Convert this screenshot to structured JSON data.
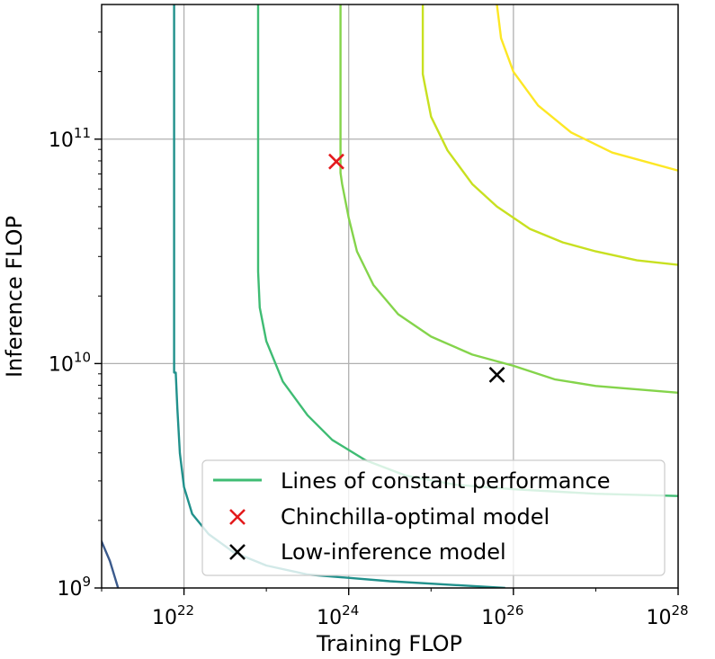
{
  "chart_data": {
    "type": "line",
    "xlabel": "Training FLOP",
    "ylabel": "Inference FLOP",
    "xscale": "log",
    "yscale": "log",
    "xlim_log10": [
      21.0,
      28.0
    ],
    "ylim_log10": [
      9.0,
      11.6
    ],
    "grid": true,
    "x_ticks": [
      {
        "base": "10",
        "exp": "22",
        "log10": 22
      },
      {
        "base": "10",
        "exp": "24",
        "log10": 24
      },
      {
        "base": "10",
        "exp": "26",
        "log10": 26
      },
      {
        "base": "10",
        "exp": "28",
        "log10": 28
      }
    ],
    "y_ticks": [
      {
        "base": "10",
        "exp": "9",
        "log10": 9
      },
      {
        "base": "10",
        "exp": "10",
        "log10": 10
      },
      {
        "base": "10",
        "exp": "11",
        "log10": 11
      }
    ],
    "series": [
      {
        "name": "contour-0",
        "color": "#3b5a8c",
        "points": [
          [
            20.95,
            9.25
          ],
          [
            21.1,
            9.12
          ],
          [
            21.2,
            9.0
          ]
        ]
      },
      {
        "name": "contour-1",
        "color": "#21918c",
        "points": [
          [
            21.88,
            11.6
          ],
          [
            21.88,
            9.96
          ],
          [
            21.9,
            9.96
          ],
          [
            21.92,
            9.8
          ],
          [
            21.95,
            9.6
          ],
          [
            22.0,
            9.45
          ],
          [
            22.1,
            9.33
          ],
          [
            22.3,
            9.24
          ],
          [
            22.6,
            9.16
          ],
          [
            23.0,
            9.1
          ],
          [
            23.5,
            9.06
          ],
          [
            24.5,
            9.03
          ],
          [
            25.9,
            9.0
          ]
        ]
      },
      {
        "name": "contour-2",
        "color": "#3fbc73",
        "points": [
          [
            22.9,
            11.6
          ],
          [
            22.9,
            10.41
          ],
          [
            22.92,
            10.25
          ],
          [
            23.0,
            10.1
          ],
          [
            23.2,
            9.92
          ],
          [
            23.5,
            9.77
          ],
          [
            23.8,
            9.66
          ],
          [
            24.2,
            9.57
          ],
          [
            24.7,
            9.5
          ],
          [
            25.3,
            9.46
          ],
          [
            26.0,
            9.44
          ],
          [
            27.0,
            9.42
          ],
          [
            28.0,
            9.41
          ]
        ]
      },
      {
        "name": "contour-3",
        "color": "#84d44b",
        "points": [
          [
            23.9,
            11.6
          ],
          [
            23.9,
            10.85
          ],
          [
            23.92,
            10.8
          ],
          [
            24.0,
            10.65
          ],
          [
            24.1,
            10.5
          ],
          [
            24.3,
            10.35
          ],
          [
            24.6,
            10.22
          ],
          [
            25.0,
            10.12
          ],
          [
            25.5,
            10.04
          ],
          [
            26.0,
            9.99
          ],
          [
            26.5,
            9.93
          ],
          [
            27.0,
            9.9
          ],
          [
            28.0,
            9.87
          ]
        ]
      },
      {
        "name": "contour-4",
        "color": "#c8e020",
        "points": [
          [
            24.9,
            11.6
          ],
          [
            24.9,
            11.29
          ],
          [
            24.92,
            11.25
          ],
          [
            25.0,
            11.1
          ],
          [
            25.2,
            10.95
          ],
          [
            25.5,
            10.8
          ],
          [
            25.8,
            10.7
          ],
          [
            26.2,
            10.6
          ],
          [
            26.6,
            10.54
          ],
          [
            27.0,
            10.5
          ],
          [
            27.5,
            10.46
          ],
          [
            28.0,
            10.44
          ]
        ]
      },
      {
        "name": "contour-5",
        "color": "#fde725",
        "points": [
          [
            25.8,
            11.6
          ],
          [
            25.85,
            11.45
          ],
          [
            26.0,
            11.3
          ],
          [
            26.3,
            11.15
          ],
          [
            26.7,
            11.03
          ],
          [
            27.2,
            10.94
          ],
          [
            28.0,
            10.86
          ]
        ]
      }
    ],
    "markers": [
      {
        "name": "Chinchilla-optimal model",
        "x_log10": 23.85,
        "y_log10": 10.9,
        "color": "#e31a1c",
        "marker": "x"
      },
      {
        "name": "Low-inference model",
        "x_log10": 25.8,
        "y_log10": 9.95,
        "color": "#000000",
        "marker": "x"
      }
    ],
    "legend": {
      "position": "lower-right",
      "entries": [
        {
          "label": "Lines of constant performance",
          "color": "#3fbc73",
          "kind": "line"
        },
        {
          "label": "Chinchilla-optimal model",
          "color": "#e31a1c",
          "kind": "x"
        },
        {
          "label": "Low-inference model",
          "color": "#000000",
          "kind": "x"
        }
      ]
    }
  }
}
